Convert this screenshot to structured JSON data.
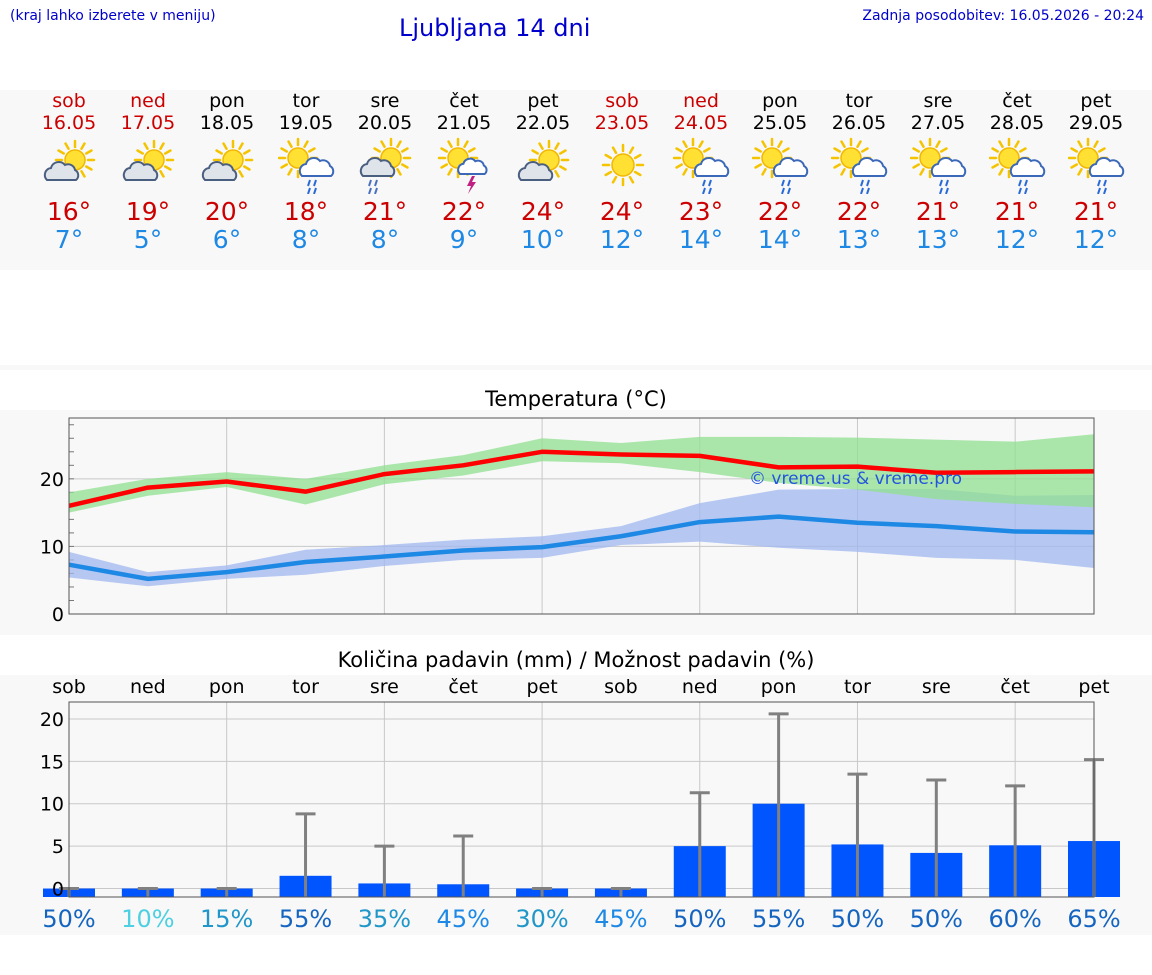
{
  "header": {
    "note": "(kraj lahko izberete v meniju)",
    "title": "Ljubljana 14 dni",
    "updated": "Zadnja posodobitev: 16.05.2026 - 20:24"
  },
  "colors": {
    "weekend": "#cc0000",
    "tmax": "#cc0000",
    "tmin": "#1e88e5",
    "max_line": "#ff0000",
    "min_line": "#1e88e5",
    "max_band": "#90e090",
    "min_band": "#a0b8f0",
    "bar": "#0055ff"
  },
  "days": [
    {
      "name": "sob",
      "date": "16.05",
      "weekend": true,
      "icon": "sun-cloud-icon",
      "tmax": "16°",
      "tmin": "7°"
    },
    {
      "name": "ned",
      "date": "17.05",
      "weekend": true,
      "icon": "sun-cloud-icon",
      "tmax": "19°",
      "tmin": "5°"
    },
    {
      "name": "pon",
      "date": "18.05",
      "weekend": false,
      "icon": "sun-cloud-icon",
      "tmax": "20°",
      "tmin": "6°"
    },
    {
      "name": "tor",
      "date": "19.05",
      "weekend": false,
      "icon": "sun-rain-icon",
      "tmax": "18°",
      "tmin": "8°"
    },
    {
      "name": "sre",
      "date": "20.05",
      "weekend": false,
      "icon": "cloud-sun-rain-icon",
      "tmax": "21°",
      "tmin": "8°"
    },
    {
      "name": "čet",
      "date": "21.05",
      "weekend": false,
      "icon": "sun-thunder-icon",
      "tmax": "22°",
      "tmin": "9°"
    },
    {
      "name": "pet",
      "date": "22.05",
      "weekend": false,
      "icon": "sun-cloud-icon",
      "tmax": "24°",
      "tmin": "10°"
    },
    {
      "name": "sob",
      "date": "23.05",
      "weekend": true,
      "icon": "sun-icon",
      "tmax": "24°",
      "tmin": "12°"
    },
    {
      "name": "ned",
      "date": "24.05",
      "weekend": true,
      "icon": "sun-rain-icon",
      "tmax": "23°",
      "tmin": "14°"
    },
    {
      "name": "pon",
      "date": "25.05",
      "weekend": false,
      "icon": "sun-rain-icon",
      "tmax": "22°",
      "tmin": "14°"
    },
    {
      "name": "tor",
      "date": "26.05",
      "weekend": false,
      "icon": "sun-rain-icon",
      "tmax": "22°",
      "tmin": "13°"
    },
    {
      "name": "sre",
      "date": "27.05",
      "weekend": false,
      "icon": "sun-rain-icon",
      "tmax": "21°",
      "tmin": "13°"
    },
    {
      "name": "čet",
      "date": "28.05",
      "weekend": false,
      "icon": "sun-rain-icon",
      "tmax": "21°",
      "tmin": "12°"
    },
    {
      "name": "pet",
      "date": "29.05",
      "weekend": false,
      "icon": "sun-rain-icon",
      "tmax": "21°",
      "tmin": "12°"
    }
  ],
  "chart_data": [
    {
      "type": "line",
      "title": "Temperatura (°C)",
      "watermark": "© vreme.us & vreme.pro",
      "ylim": [
        0,
        29
      ],
      "yticks": [
        0,
        10,
        20
      ],
      "grid": true,
      "series": [
        {
          "values": [
            16,
            18.7,
            19.6,
            18.1,
            20.7,
            22,
            24,
            23.6,
            23.4,
            21.7,
            21.8,
            20.9,
            21,
            21.1
          ]
        },
        {
          "values": [
            7.3,
            5.2,
            6.2,
            7.7,
            8.5,
            9.4,
            9.9,
            11.5,
            13.6,
            14.4,
            13.5,
            13,
            12.2,
            12.1
          ]
        }
      ],
      "bands": [
        {
          "upper": [
            18,
            20,
            21,
            20,
            22,
            23.5,
            26,
            25.3,
            26.2,
            26.2,
            26.1,
            25.8,
            25.5,
            26.6
          ],
          "lower": [
            15,
            17.5,
            18.8,
            16.2,
            19.2,
            20.5,
            22.6,
            22.3,
            21,
            19.4,
            18.4,
            17,
            16.3,
            15.8
          ]
        },
        {
          "upper": [
            9.2,
            6.2,
            7.2,
            9.5,
            10.2,
            11,
            11.5,
            13,
            16.4,
            18.4,
            18.5,
            18.5,
            17.5,
            17.6
          ],
          "lower": [
            5.4,
            4.1,
            5.2,
            5.8,
            7.1,
            8,
            8.3,
            10.2,
            10.7,
            9.8,
            9.2,
            8.3,
            8,
            6.8
          ]
        }
      ]
    },
    {
      "type": "bar",
      "title": "Količina padavin (mm) / Možnost padavin (%)",
      "categories": [
        "sob",
        "ned",
        "pon",
        "tor",
        "sre",
        "čet",
        "pet",
        "sob",
        "ned",
        "pon",
        "tor",
        "sre",
        "čet",
        "pet"
      ],
      "values": [
        0,
        0,
        0,
        1.5,
        0.6,
        0.5,
        0,
        0,
        5,
        10,
        5.2,
        4.2,
        5.1,
        5.6
      ],
      "error_max": [
        0,
        0,
        0,
        8.8,
        5,
        6.2,
        0,
        0,
        11.3,
        20.6,
        13.5,
        12.8,
        12.1,
        15.2
      ],
      "probabilities": [
        "50%",
        "10%",
        "15%",
        "55%",
        "35%",
        "45%",
        "30%",
        "45%",
        "50%",
        "55%",
        "50%",
        "50%",
        "60%",
        "65%"
      ],
      "probability_colors": [
        "#1565c0",
        "#4dd0e1",
        "#2196c8",
        "#1565c0",
        "#2196c8",
        "#1e88e5",
        "#2196c8",
        "#1e88e5",
        "#1565c0",
        "#1565c0",
        "#1565c0",
        "#1565c0",
        "#1565c0",
        "#1565c0"
      ],
      "yticks": [
        0,
        5,
        10,
        15,
        20
      ],
      "ylim": [
        -1,
        22
      ],
      "grid": true
    }
  ]
}
